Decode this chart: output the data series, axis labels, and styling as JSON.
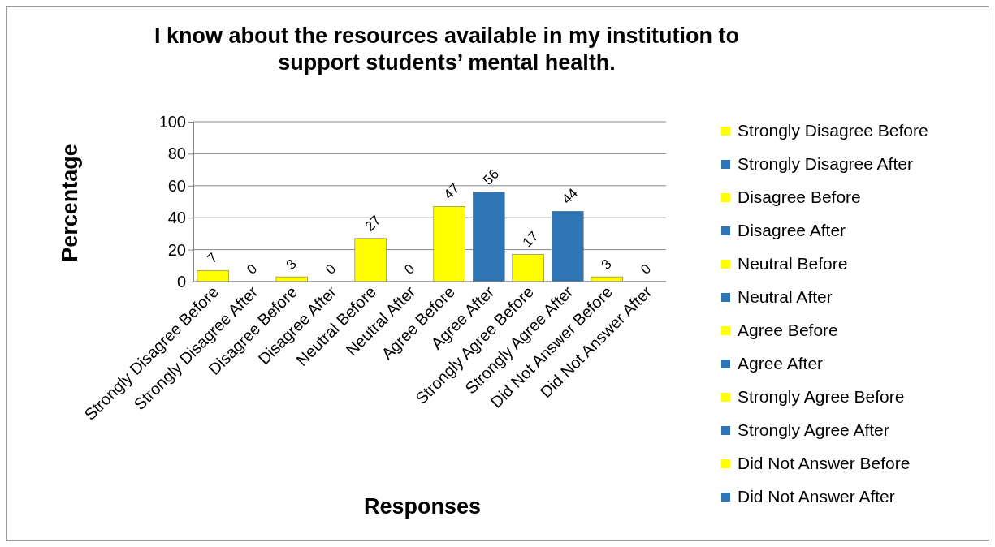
{
  "chart_data": {
    "type": "bar",
    "title": "I know about the resources available in my institution to support students’ mental health.",
    "xlabel": "Responses",
    "ylabel": "Percentage",
    "categories": [
      "Strongly Disagree Before",
      "Strongly Disagree After",
      "Disagree Before",
      "Disagree After",
      "Neutral Before",
      "Neutral After",
      "Agree Before",
      "Agree After",
      "Strongly Agree Before",
      "Strongly Agree After",
      "Did Not Answer Before",
      "Did Not Answer After"
    ],
    "series": [
      {
        "name": "Strongly Disagree Before",
        "color": "#ffff00",
        "values": [
          7,
          null,
          null,
          null,
          null,
          null,
          null,
          null,
          null,
          null,
          null,
          null
        ]
      },
      {
        "name": "Strongly Disagree After",
        "color": "#2e75b6",
        "values": [
          null,
          0,
          null,
          null,
          null,
          null,
          null,
          null,
          null,
          null,
          null,
          null
        ]
      },
      {
        "name": "Disagree Before",
        "color": "#ffff00",
        "values": [
          null,
          null,
          3,
          null,
          null,
          null,
          null,
          null,
          null,
          null,
          null,
          null
        ]
      },
      {
        "name": "Disagree After",
        "color": "#2e75b6",
        "values": [
          null,
          null,
          null,
          0,
          null,
          null,
          null,
          null,
          null,
          null,
          null,
          null
        ]
      },
      {
        "name": "Neutral Before",
        "color": "#ffff00",
        "values": [
          null,
          null,
          null,
          null,
          27,
          null,
          null,
          null,
          null,
          null,
          null,
          null
        ]
      },
      {
        "name": "Neutral After",
        "color": "#2e75b6",
        "values": [
          null,
          null,
          null,
          null,
          null,
          0,
          null,
          null,
          null,
          null,
          null,
          null
        ]
      },
      {
        "name": "Agree Before",
        "color": "#ffff00",
        "values": [
          null,
          null,
          null,
          null,
          null,
          null,
          47,
          null,
          null,
          null,
          null,
          null
        ]
      },
      {
        "name": "Agree After",
        "color": "#2e75b6",
        "values": [
          null,
          null,
          null,
          null,
          null,
          null,
          null,
          56,
          null,
          null,
          null,
          null
        ]
      },
      {
        "name": "Strongly Agree Before",
        "color": "#ffff00",
        "values": [
          null,
          null,
          null,
          null,
          null,
          null,
          null,
          null,
          17,
          null,
          null,
          null
        ]
      },
      {
        "name": "Strongly Agree After",
        "color": "#2e75b6",
        "values": [
          null,
          null,
          null,
          null,
          null,
          null,
          null,
          null,
          null,
          44,
          null,
          null
        ]
      },
      {
        "name": "Did Not Answer Before",
        "color": "#ffff00",
        "values": [
          null,
          null,
          null,
          null,
          null,
          null,
          null,
          null,
          null,
          null,
          3,
          null
        ]
      },
      {
        "name": "Did Not Answer After",
        "color": "#2e75b6",
        "values": [
          null,
          null,
          null,
          null,
          null,
          null,
          null,
          null,
          null,
          null,
          null,
          0
        ]
      }
    ],
    "ylim": [
      0,
      100
    ],
    "yticks": [
      0,
      20,
      40,
      60,
      80,
      100
    ],
    "grid": "y",
    "data_labels": true,
    "legend": "right"
  }
}
